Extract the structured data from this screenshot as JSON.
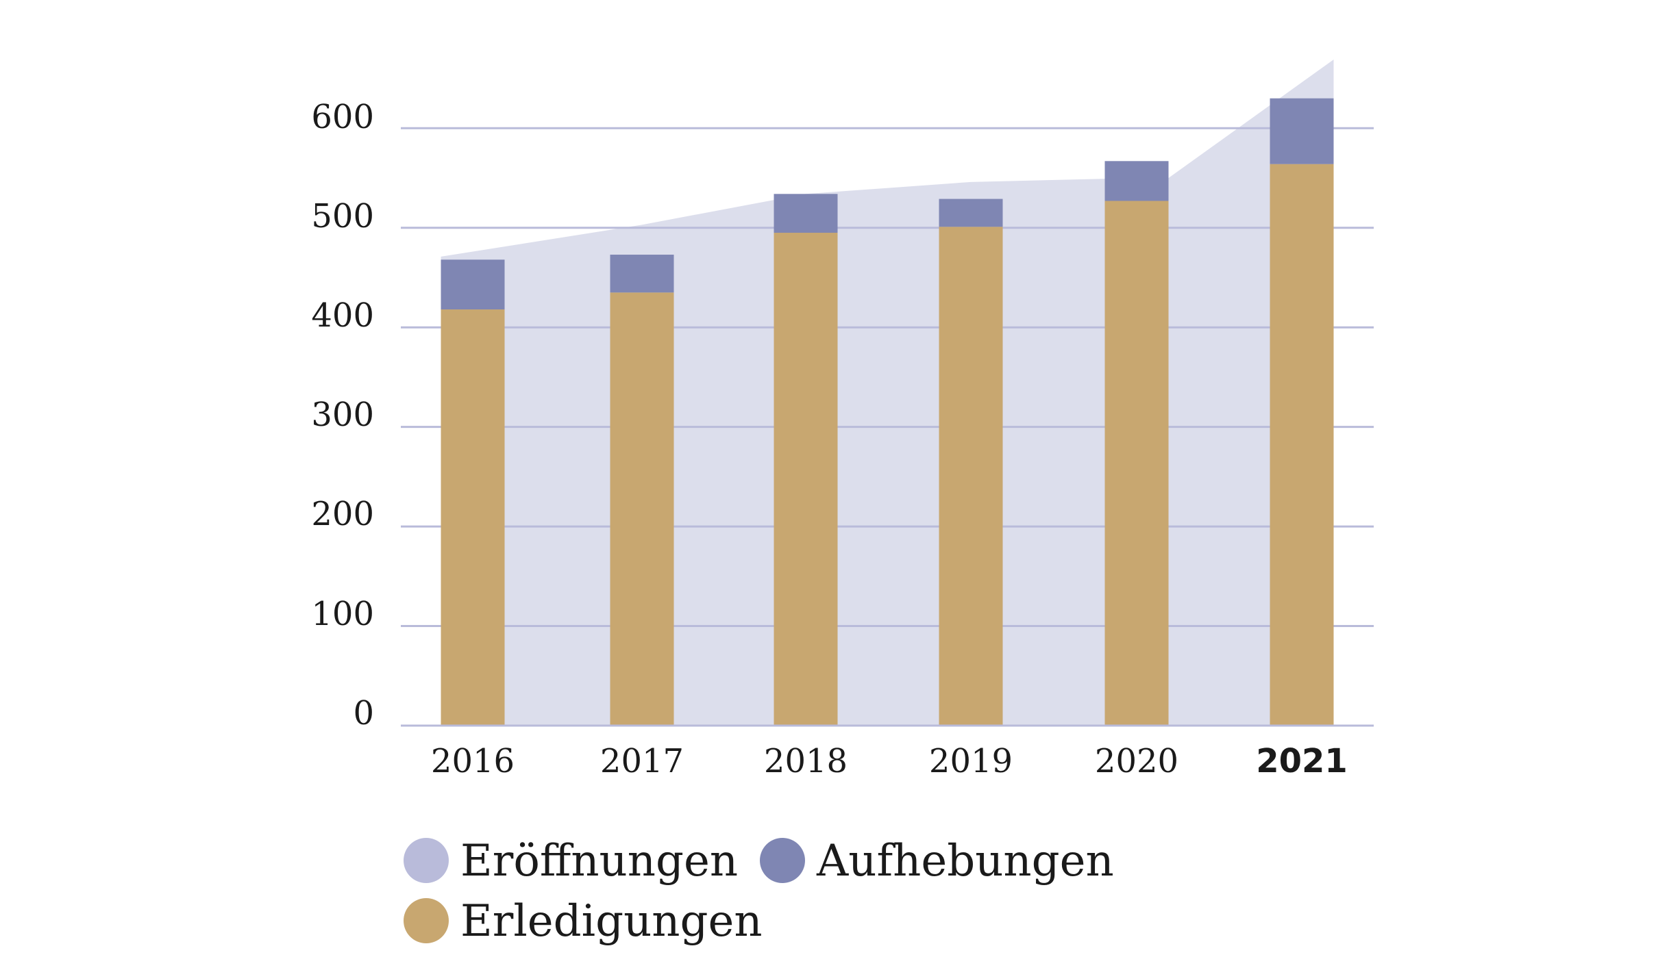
{
  "chart_data": {
    "type": "bar",
    "categories": [
      "2016",
      "2017",
      "2018",
      "2019",
      "2020",
      "2021"
    ],
    "highlight_category": "2021",
    "y_ticks": [
      "0",
      "100",
      "200",
      "300",
      "400",
      "500",
      "600"
    ],
    "ylim": [
      0,
      680
    ],
    "grid": true,
    "legend_position": "bottom-left",
    "series": [
      {
        "name": "Eröffnungen",
        "kind": "area",
        "color": "#dcdeec",
        "legend_color": "#b9bbda",
        "values": [
          471,
          503,
          534,
          546,
          550,
          669
        ]
      },
      {
        "name": "Erledigungen",
        "kind": "bar-stack",
        "color": "#c8a770",
        "values": [
          418,
          435,
          495,
          501,
          527,
          564
        ]
      },
      {
        "name": "Aufhebungen",
        "kind": "bar-stack",
        "color": "#7f86b3",
        "values": [
          50,
          38,
          39,
          28,
          40,
          66
        ]
      }
    ],
    "grid_color": "#b9bbda",
    "axis_color": "#b9bbda"
  }
}
